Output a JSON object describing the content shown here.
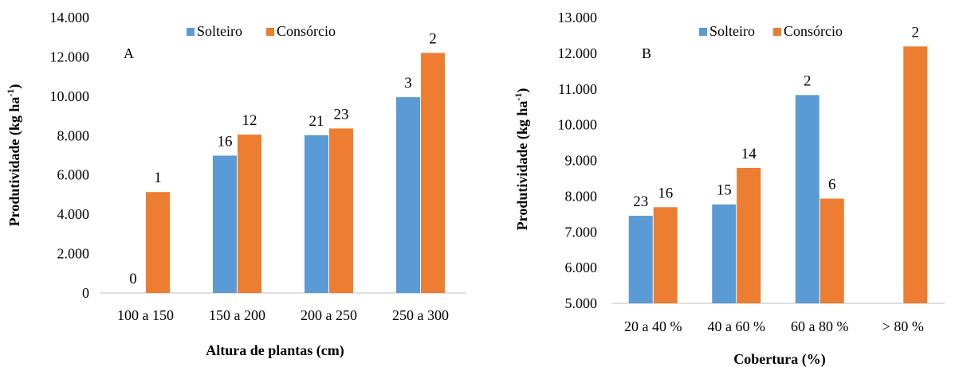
{
  "chart_data": [
    {
      "type": "bar",
      "panel_label": "A",
      "categories": [
        "100 a 150",
        "150 a 200",
        "200 a 250",
        "250 a 300"
      ],
      "series": [
        {
          "name": "Solteiro",
          "values": [
            0,
            6980,
            8020,
            9950
          ],
          "labels": [
            "0",
            "16",
            "21",
            "3"
          ],
          "color": "#5B9BD5"
        },
        {
          "name": "Consórcio",
          "values": [
            5130,
            8050,
            8360,
            12200
          ],
          "labels": [
            "1",
            "12",
            "23",
            "2"
          ],
          "color": "#ED7D31"
        }
      ],
      "xlabel": "Altura de plantas (cm)",
      "ylabel": "Produtividade (kg ha",
      "ylabel_sup": "-1",
      "ylabel_end": ")",
      "ylim": [
        0,
        14000
      ],
      "yticks": [
        0,
        2000,
        4000,
        6000,
        8000,
        10000,
        12000,
        14000
      ],
      "ytick_labels": [
        "0",
        "2.000",
        "4.000",
        "6.000",
        "8.000",
        "10.000",
        "12.000",
        "14.000"
      ],
      "legend_position": "top",
      "grid": false
    },
    {
      "type": "bar",
      "panel_label": "B",
      "categories": [
        "20 a 40 %",
        "40 a 60 %",
        "60 a 80 %",
        "> 80 %"
      ],
      "series": [
        {
          "name": "Solteiro",
          "values": [
            7450,
            7770,
            10830,
            null
          ],
          "labels": [
            "23",
            "15",
            "2",
            ""
          ],
          "color": "#5B9BD5"
        },
        {
          "name": "Consórcio",
          "values": [
            7690,
            8790,
            7930,
            12190
          ],
          "labels": [
            "16",
            "14",
            "6",
            "2"
          ],
          "color": "#ED7D31"
        }
      ],
      "xlabel": "Cobertura (%)",
      "ylabel": "Produtividade (kg ha",
      "ylabel_sup": "-1",
      "ylabel_end": ")",
      "ylim": [
        5000,
        13000
      ],
      "yticks": [
        5000,
        6000,
        7000,
        8000,
        9000,
        10000,
        11000,
        12000,
        13000
      ],
      "ytick_labels": [
        "5.000",
        "6.000",
        "7.000",
        "8.000",
        "9.000",
        "10.000",
        "11.000",
        "12.000",
        "13.000"
      ],
      "legend_position": "top",
      "grid": false
    }
  ]
}
